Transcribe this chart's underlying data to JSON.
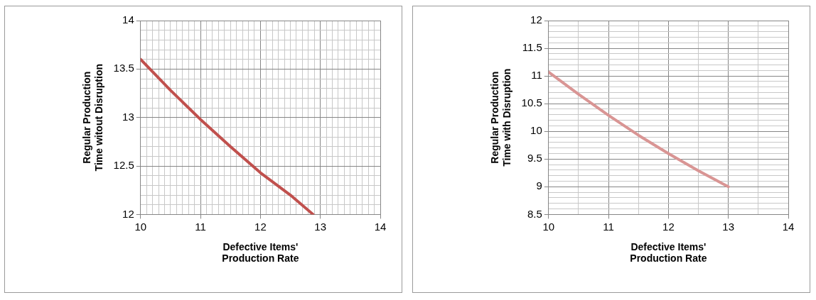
{
  "chart_data": [
    {
      "type": "line",
      "xlabel": "Defective Items' Production Rate",
      "ylabel": "Regular Production Time witout Disruption",
      "x": [
        10,
        10.5,
        11,
        11.5,
        12,
        12.5,
        12.88
      ],
      "values": [
        13.6,
        13.28,
        12.98,
        12.7,
        12.43,
        12.2,
        12.0
      ],
      "color": "#c0504d",
      "xlim": [
        10,
        14
      ],
      "ylim": [
        12,
        14
      ],
      "xticks": [
        10,
        {
          "value": 10.1,
          "label": null
        },
        {
          "value": 10.2,
          "label": null
        },
        {
          "value": 10.3,
          "label": null
        },
        {
          "value": 10.4,
          "label": null
        },
        {
          "value": 10.5,
          "label": null
        },
        {
          "value": 10.6,
          "label": null
        },
        {
          "value": 10.7,
          "label": null
        },
        {
          "value": 10.8,
          "label": null
        },
        {
          "value": 10.9,
          "label": null
        },
        11,
        {
          "value": 11.1,
          "label": null
        },
        {
          "value": 11.2,
          "label": null
        },
        {
          "value": 11.3,
          "label": null
        },
        {
          "value": 11.4,
          "label": null
        },
        {
          "value": 11.5,
          "label": null
        },
        {
          "value": 11.6,
          "label": null
        },
        {
          "value": 11.7,
          "label": null
        },
        {
          "value": 11.8,
          "label": null
        },
        {
          "value": 11.9,
          "label": null
        },
        12,
        {
          "value": 12.1,
          "label": null
        },
        {
          "value": 12.2,
          "label": null
        },
        {
          "value": 12.3,
          "label": null
        },
        {
          "value": 12.4,
          "label": null
        },
        {
          "value": 12.5,
          "label": null
        },
        {
          "value": 12.6,
          "label": null
        },
        {
          "value": 12.7,
          "label": null
        },
        {
          "value": 12.8,
          "label": null
        },
        {
          "value": 12.9,
          "label": null
        },
        13,
        {
          "value": 13.1,
          "label": null
        },
        {
          "value": 13.2,
          "label": null
        },
        {
          "value": 13.3,
          "label": null
        },
        {
          "value": 13.4,
          "label": null
        },
        {
          "value": 13.5,
          "label": null
        },
        {
          "value": 13.6,
          "label": null
        },
        {
          "value": 13.7,
          "label": null
        },
        {
          "value": 13.8,
          "label": null
        },
        {
          "value": 13.9,
          "label": null
        },
        14
      ],
      "yticks": [
        12,
        {
          "value": 12.1,
          "label": null
        },
        {
          "value": 12.2,
          "label": null
        },
        {
          "value": 12.3,
          "label": null
        },
        {
          "value": 12.4,
          "label": null
        },
        12.5,
        {
          "value": 12.6,
          "label": null
        },
        {
          "value": 12.7,
          "label": null
        },
        {
          "value": 12.8,
          "label": null
        },
        {
          "value": 12.9,
          "label": null
        },
        13,
        {
          "value": 13.1,
          "label": null
        },
        {
          "value": 13.2,
          "label": null
        },
        {
          "value": 13.3,
          "label": null
        },
        {
          "value": 13.4,
          "label": null
        },
        13.5,
        {
          "value": 13.6,
          "label": null
        },
        {
          "value": 13.7,
          "label": null
        },
        {
          "value": 13.8,
          "label": null
        },
        {
          "value": 13.9,
          "label": null
        },
        14
      ],
      "grid": true,
      "legend": false,
      "marker": "none",
      "line_style": "solid"
    },
    {
      "type": "line",
      "xlabel": "Defective Items' Production Rate",
      "ylabel": "Regular Production Time with Disruption",
      "x": [
        10,
        10.5,
        11,
        11.5,
        12,
        12.5,
        13
      ],
      "values": [
        11.07,
        10.67,
        10.29,
        9.93,
        9.6,
        9.29,
        9.0
      ],
      "color": "#d99594",
      "xlim": [
        10,
        14
      ],
      "ylim": [
        8.5,
        12
      ],
      "xticks": [
        10,
        {
          "value": 10.5,
          "label": null
        },
        11,
        {
          "value": 11.5,
          "label": null
        },
        12,
        {
          "value": 12.5,
          "label": null
        },
        13,
        {
          "value": 13.5,
          "label": null
        },
        14
      ],
      "yticks": [
        8.5,
        {
          "value": 8.6,
          "label": null
        },
        {
          "value": 8.7,
          "label": null
        },
        {
          "value": 8.8,
          "label": null
        },
        {
          "value": 8.9,
          "label": null
        },
        9,
        {
          "value": 9.1,
          "label": null
        },
        {
          "value": 9.2,
          "label": null
        },
        {
          "value": 9.3,
          "label": null
        },
        {
          "value": 9.4,
          "label": null
        },
        9.5,
        {
          "value": 9.6,
          "label": null
        },
        {
          "value": 9.7,
          "label": null
        },
        {
          "value": 9.8,
          "label": null
        },
        {
          "value": 9.9,
          "label": null
        },
        10,
        {
          "value": 10.1,
          "label": null
        },
        {
          "value": 10.2,
          "label": null
        },
        {
          "value": 10.3,
          "label": null
        },
        {
          "value": 10.4,
          "label": null
        },
        10.5,
        {
          "value": 10.6,
          "label": null
        },
        {
          "value": 10.7,
          "label": null
        },
        {
          "value": 10.8,
          "label": null
        },
        {
          "value": 10.9,
          "label": null
        },
        11,
        {
          "value": 11.1,
          "label": null
        },
        {
          "value": 11.2,
          "label": null
        },
        {
          "value": 11.3,
          "label": null
        },
        {
          "value": 11.4,
          "label": null
        },
        11.5,
        {
          "value": 11.6,
          "label": null
        },
        {
          "value": 11.7,
          "label": null
        },
        {
          "value": 11.8,
          "label": null
        },
        {
          "value": 11.9,
          "label": null
        },
        12
      ],
      "grid": true,
      "legend": false,
      "marker": "none",
      "line_style": "solid"
    }
  ]
}
